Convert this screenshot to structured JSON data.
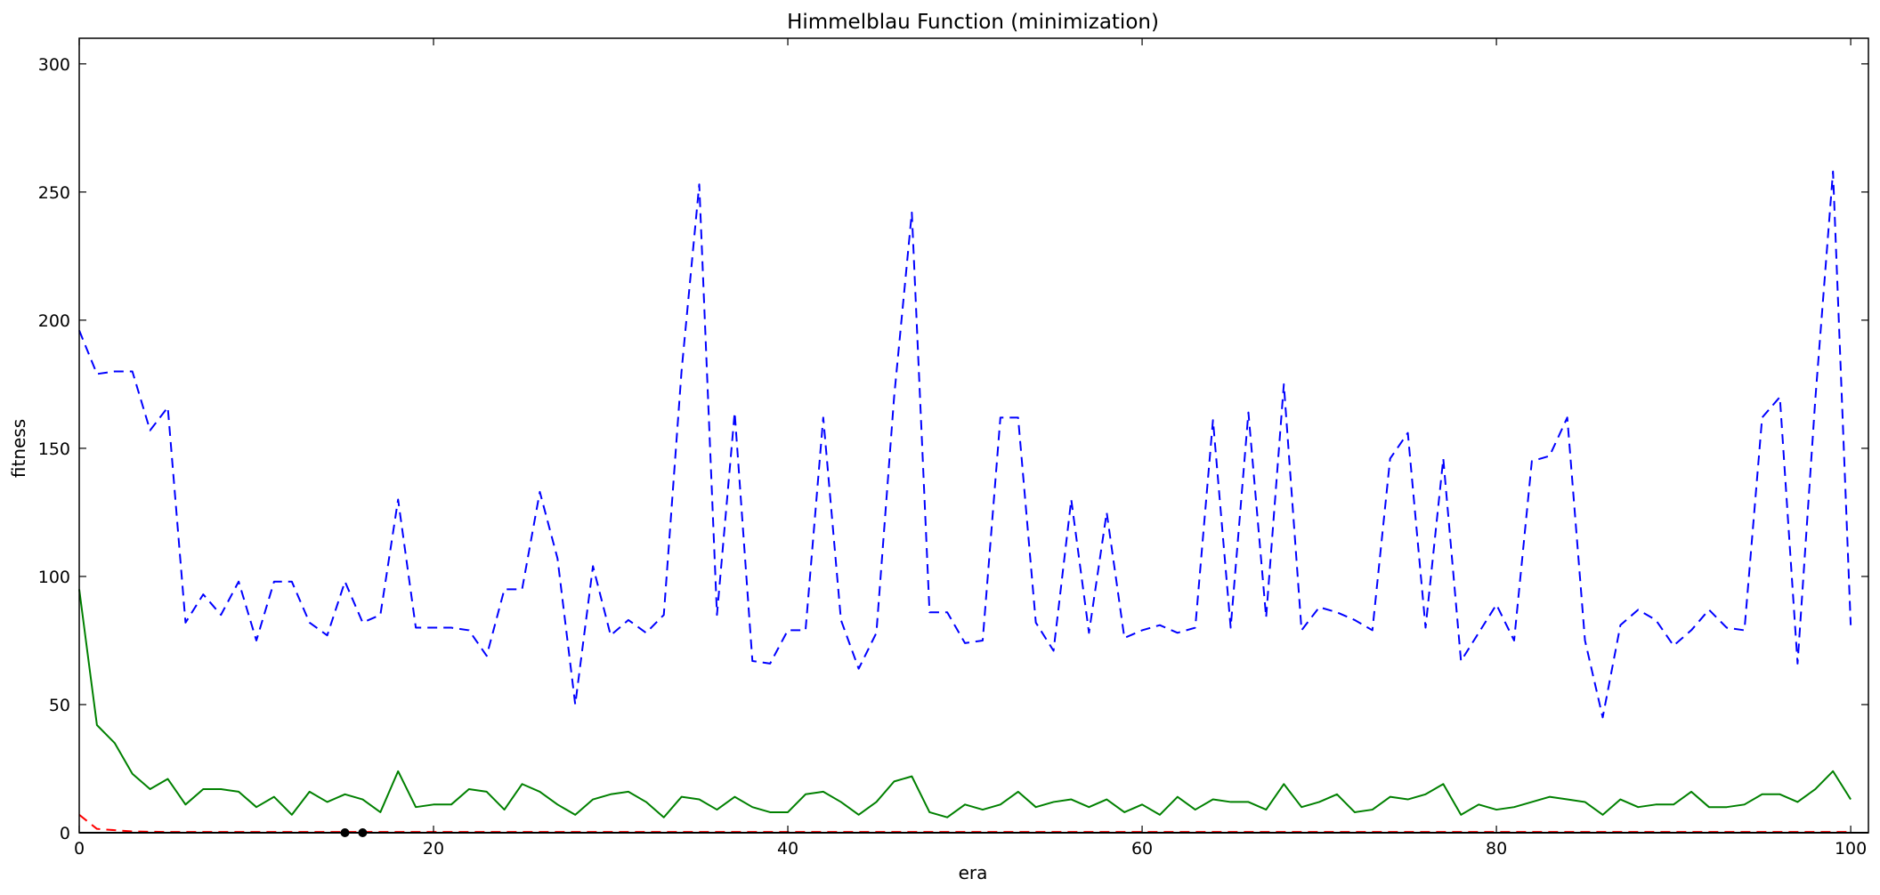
{
  "chart_data": {
    "type": "line",
    "title": "Himmelblau Function (minimization)",
    "xlabel": "era",
    "ylabel": "fitness",
    "xlim": [
      0,
      101
    ],
    "ylim": [
      0,
      310
    ],
    "xticks": [
      0,
      20,
      40,
      60,
      80,
      100
    ],
    "yticks": [
      0,
      50,
      100,
      150,
      200,
      250,
      300
    ],
    "grid": false,
    "series": [
      {
        "color": "#0000ff",
        "style": "dashed",
        "x": [
          0,
          1,
          2,
          3,
          4,
          5,
          6,
          7,
          8,
          9,
          10,
          11,
          12,
          13,
          14,
          15,
          16,
          17,
          18,
          19,
          20,
          21,
          22,
          23,
          24,
          25,
          26,
          27,
          28,
          29,
          30,
          31,
          32,
          33,
          34,
          35,
          36,
          37,
          38,
          39,
          40,
          41,
          42,
          43,
          44,
          45,
          46,
          47,
          48,
          49,
          50,
          51,
          52,
          53,
          54,
          55,
          56,
          57,
          58,
          59,
          60,
          61,
          62,
          63,
          64,
          65,
          66,
          67,
          68,
          69,
          70,
          71,
          72,
          73,
          74,
          75,
          76,
          77,
          78,
          79,
          80,
          81,
          82,
          83,
          84,
          85,
          86,
          87,
          88,
          89,
          90,
          91,
          92,
          93,
          94,
          95,
          96,
          97,
          98,
          99,
          100
        ],
        "values": [
          196,
          179,
          180,
          180,
          157,
          166,
          82,
          93,
          85,
          98,
          75,
          98,
          98,
          82,
          77,
          98,
          82,
          85,
          130,
          80,
          80,
          80,
          79,
          69,
          95,
          95,
          133,
          107,
          50,
          104,
          77,
          83,
          78,
          85,
          180,
          253,
          85,
          164,
          67,
          66,
          79,
          79,
          162,
          83,
          64,
          78,
          170,
          242,
          86,
          86,
          74,
          75,
          162,
          162,
          82,
          71,
          130,
          78,
          125,
          76,
          79,
          81,
          78,
          80,
          161,
          80,
          164,
          84,
          175,
          79,
          88,
          86,
          83,
          79,
          146,
          156,
          80,
          146,
          67,
          78,
          89,
          75,
          145,
          147,
          162,
          75,
          45,
          81,
          87,
          83,
          73,
          79,
          87,
          80,
          79,
          162,
          170,
          66,
          169,
          258,
          81
        ]
      },
      {
        "color": "#008000",
        "style": "solid",
        "x": [
          0,
          1,
          2,
          3,
          4,
          5,
          6,
          7,
          8,
          9,
          10,
          11,
          12,
          13,
          14,
          15,
          16,
          17,
          18,
          19,
          20,
          21,
          22,
          23,
          24,
          25,
          26,
          27,
          28,
          29,
          30,
          31,
          32,
          33,
          34,
          35,
          36,
          37,
          38,
          39,
          40,
          41,
          42,
          43,
          44,
          45,
          46,
          47,
          48,
          49,
          50,
          51,
          52,
          53,
          54,
          55,
          56,
          57,
          58,
          59,
          60,
          61,
          62,
          63,
          64,
          65,
          66,
          67,
          68,
          69,
          70,
          71,
          72,
          73,
          74,
          75,
          76,
          77,
          78,
          79,
          80,
          81,
          82,
          83,
          84,
          85,
          86,
          87,
          88,
          89,
          90,
          91,
          92,
          93,
          94,
          95,
          96,
          97,
          98,
          99,
          100
        ],
        "values": [
          95,
          42,
          35,
          23,
          17,
          21,
          11,
          17,
          17,
          16,
          10,
          14,
          7,
          16,
          12,
          15,
          13,
          8,
          24,
          10,
          11,
          11,
          17,
          16,
          9,
          19,
          16,
          11,
          7,
          13,
          15,
          16,
          12,
          6,
          14,
          13,
          9,
          14,
          10,
          8,
          8,
          15,
          16,
          12,
          7,
          12,
          20,
          22,
          8,
          6,
          11,
          9,
          11,
          16,
          10,
          12,
          13,
          10,
          13,
          8,
          11,
          7,
          14,
          9,
          13,
          12,
          12,
          9,
          19,
          10,
          12,
          15,
          8,
          9,
          14,
          13,
          15,
          19,
          7,
          11,
          9,
          10,
          12,
          14,
          13,
          12,
          7,
          13,
          10,
          11,
          11,
          16,
          10,
          10,
          11,
          15,
          15,
          12,
          17,
          24,
          13
        ]
      },
      {
        "color": "#ff0000",
        "style": "dashed",
        "x": [
          0,
          1,
          2,
          3,
          4,
          5,
          6,
          7,
          8,
          9,
          10,
          11,
          12,
          13,
          14,
          15,
          16,
          17,
          18,
          19,
          20,
          21,
          22,
          23,
          24,
          25,
          26,
          27,
          28,
          29,
          30,
          31,
          32,
          33,
          34,
          35,
          36,
          37,
          38,
          39,
          40,
          41,
          42,
          43,
          44,
          45,
          46,
          47,
          48,
          49,
          50,
          51,
          52,
          53,
          54,
          55,
          56,
          57,
          58,
          59,
          60,
          61,
          62,
          63,
          64,
          65,
          66,
          67,
          68,
          69,
          70,
          71,
          72,
          73,
          74,
          75,
          76,
          77,
          78,
          79,
          80,
          81,
          82,
          83,
          84,
          85,
          86,
          87,
          88,
          89,
          90,
          91,
          92,
          93,
          94,
          95,
          96,
          97,
          98,
          99,
          100
        ],
        "values": [
          7,
          1.5,
          1,
          0.5,
          0.4,
          0.3,
          0.3,
          0.3,
          0.3,
          0.3,
          0.3,
          0.3,
          0.3,
          0.3,
          0.3,
          0.3,
          0.3,
          0.3,
          0.3,
          0.3,
          0.3,
          0.3,
          0.3,
          0.3,
          0.3,
          0.3,
          0.3,
          0.3,
          0.3,
          0.3,
          0.3,
          0.3,
          0.3,
          0.3,
          0.3,
          0.3,
          0.3,
          0.3,
          0.3,
          0.3,
          0.3,
          0.3,
          0.3,
          0.3,
          0.3,
          0.3,
          0.3,
          0.3,
          0.3,
          0.3,
          0.3,
          0.3,
          0.3,
          0.3,
          0.3,
          0.3,
          0.3,
          0.3,
          0.3,
          0.3,
          0.3,
          0.3,
          0.3,
          0.3,
          0.3,
          0.3,
          0.3,
          0.3,
          0.3,
          0.3,
          0.3,
          0.3,
          0.3,
          0.3,
          0.3,
          0.3,
          0.3,
          0.3,
          0.3,
          0.3,
          0.3,
          0.3,
          0.3,
          0.3,
          0.3,
          0.3,
          0.3,
          0.3,
          0.3,
          0.3,
          0.3,
          0.3,
          0.3,
          0.3,
          0.3,
          0.3,
          0.3,
          0.3,
          0.3,
          0.3,
          0.3
        ]
      },
      {
        "color": "#000000",
        "style": "solid",
        "x": [
          0,
          15,
          16,
          101
        ],
        "values": [
          0,
          0,
          0,
          0
        ]
      }
    ],
    "markers": [
      {
        "x": 15,
        "y": 0,
        "color": "#000000"
      },
      {
        "x": 16,
        "y": 0,
        "color": "#000000"
      }
    ]
  }
}
